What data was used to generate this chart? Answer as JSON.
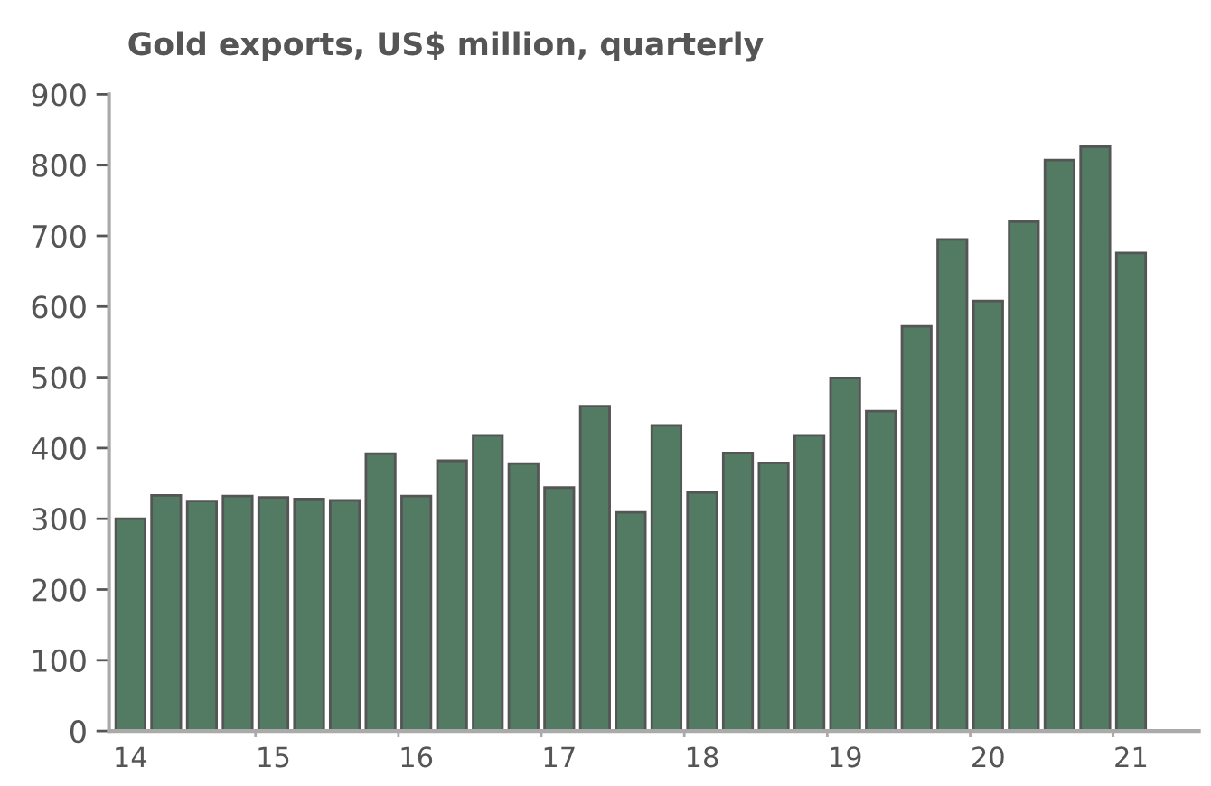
{
  "chart_data": {
    "type": "bar",
    "title": "Gold exports, US$ million, quarterly",
    "categories": [
      "14",
      null,
      null,
      null,
      "15",
      null,
      null,
      null,
      "16",
      null,
      null,
      null,
      "17",
      null,
      null,
      null,
      "18",
      null,
      null,
      null,
      "19",
      null,
      null,
      null,
      "20",
      null,
      null,
      null,
      "21"
    ],
    "values": [
      300,
      333,
      325,
      332,
      330,
      328,
      326,
      392,
      332,
      382,
      418,
      378,
      344,
      459,
      309,
      432,
      337,
      393,
      379,
      418,
      499,
      452,
      572,
      695,
      608,
      720,
      807,
      826,
      676
    ],
    "color": "#537a63",
    "ylim": [
      0,
      900
    ],
    "yticks": [
      0,
      100,
      200,
      300,
      400,
      500,
      600,
      700,
      800,
      900
    ],
    "grid": false,
    "legend": false
  }
}
